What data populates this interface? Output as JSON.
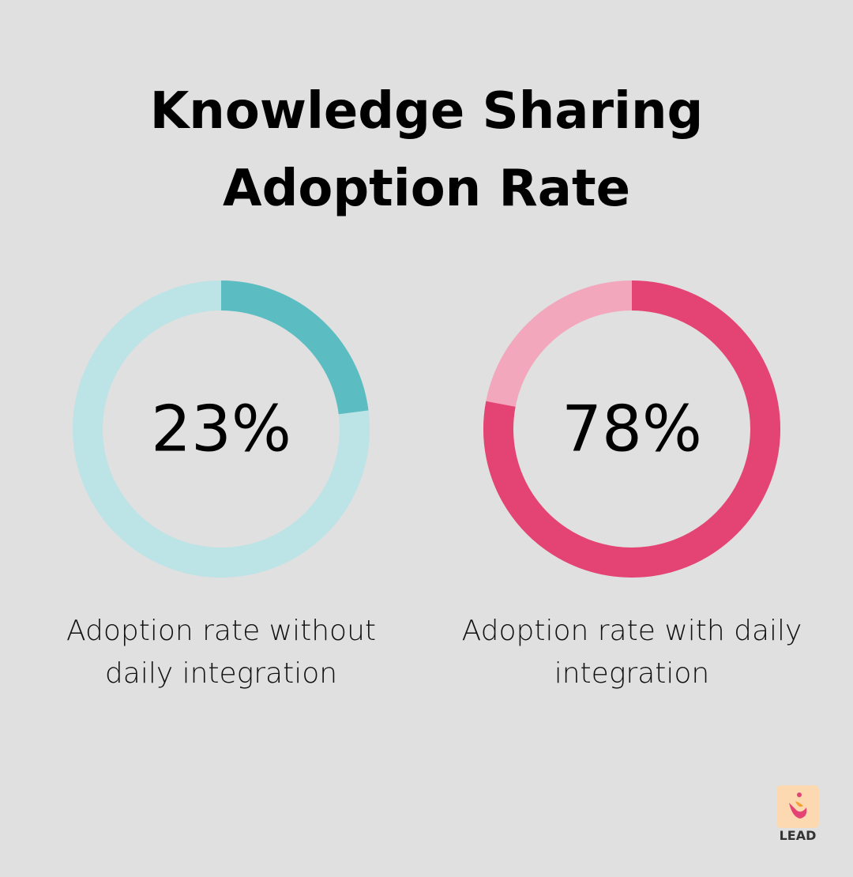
{
  "title": "Knowledge Sharing Adoption Rate",
  "chart_data": [
    {
      "type": "donut",
      "values": [
        23
      ],
      "value_labels": [
        "23%"
      ],
      "label": "Adoption rate without daily integration",
      "color": "#5bbcc1",
      "track_color": "#bce3e5"
    },
    {
      "type": "donut",
      "values": [
        78
      ],
      "value_labels": [
        "78%"
      ],
      "label": "Adoption rate with daily integration",
      "color": "#e34473",
      "track_color": "#f2a7bd"
    }
  ],
  "logo": "LEAD"
}
